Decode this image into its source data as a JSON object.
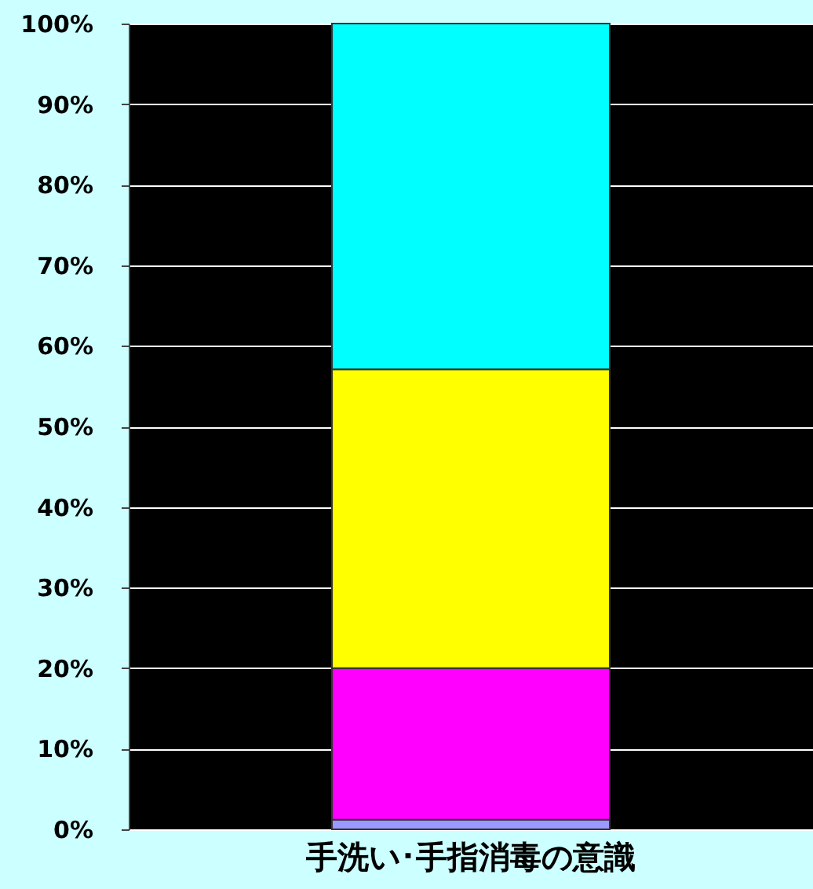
{
  "chart_data": {
    "type": "bar",
    "stacked": true,
    "categories": [
      "手洗い･手指消毒の意識"
    ],
    "series": [
      {
        "color": "#9999ff",
        "values": [
          1.2
        ]
      },
      {
        "color": "#ff00ff",
        "values": [
          18.8
        ]
      },
      {
        "color": "#ffff00",
        "values": [
          37.1
        ]
      },
      {
        "color": "#00ffff",
        "values": [
          42.9
        ]
      }
    ],
    "ylim": [
      0,
      100
    ],
    "yticks": [
      {
        "value": 0,
        "label": "0%"
      },
      {
        "value": 10,
        "label": "10%"
      },
      {
        "value": 20,
        "label": "20%"
      },
      {
        "value": 30,
        "label": "30%"
      },
      {
        "value": 40,
        "label": "40%"
      },
      {
        "value": 50,
        "label": "50%"
      },
      {
        "value": 60,
        "label": "60%"
      },
      {
        "value": 70,
        "label": "70%"
      },
      {
        "value": 80,
        "label": "80%"
      },
      {
        "value": 90,
        "label": "90%"
      },
      {
        "value": 100,
        "label": "100%"
      }
    ],
    "grid": "y"
  }
}
